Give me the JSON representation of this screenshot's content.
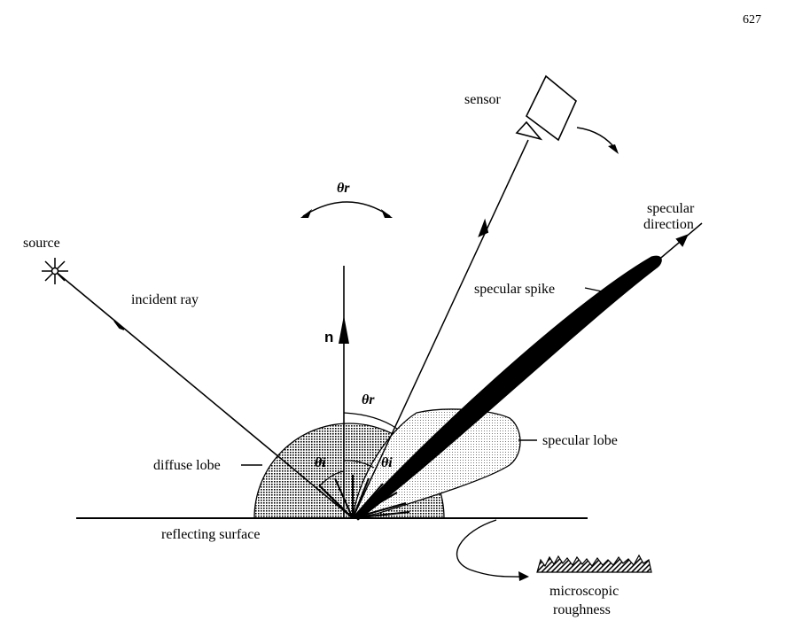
{
  "page_number": "627",
  "labels": {
    "source": "source",
    "incident_ray": "incident ray",
    "sensor": "sensor",
    "theta_r_top": "θr",
    "specular_direction_1": "specular",
    "specular_direction_2": "direction",
    "specular_spike": "specular spike",
    "normal": "n",
    "theta_r_mid": "θr",
    "theta_i_left": "θi",
    "theta_i_right": "θi",
    "specular_lobe": "specular lobe",
    "diffuse_lobe": "diffuse lobe",
    "reflecting_surface": "reflecting surface",
    "microscopic_1": "microscopic",
    "roughness": "roughness"
  }
}
